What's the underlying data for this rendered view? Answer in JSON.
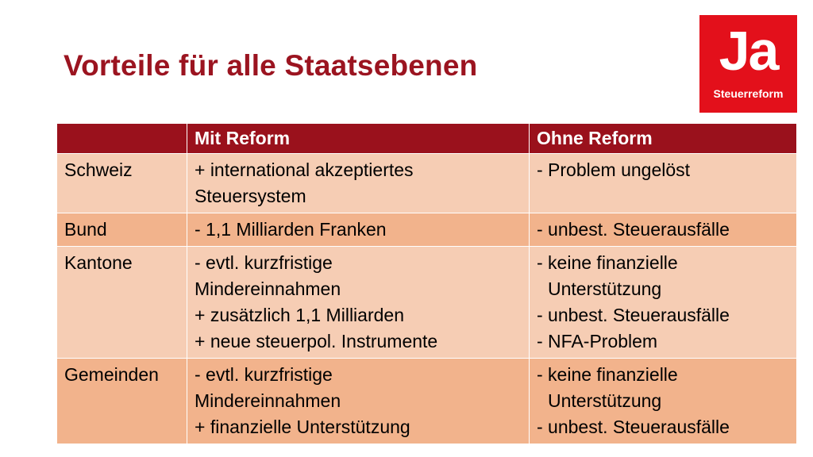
{
  "slide": {
    "title": "Vorteile für alle Staatsebenen"
  },
  "logo": {
    "big_text": "Ja",
    "sub_text": "Steuerreform",
    "color": "#e3101b"
  },
  "table": {
    "headers": [
      "",
      "Mit Reform",
      "Ohne Reform"
    ],
    "rows": [
      {
        "label": "Schweiz",
        "mit": [
          "+ international akzeptiertes",
          "Steuersystem"
        ],
        "ohne": [
          "- Problem ungelöst"
        ]
      },
      {
        "label": "Bund",
        "mit": [
          "- 1,1 Milliarden Franken"
        ],
        "ohne": [
          "- unbest. Steuerausfälle"
        ]
      },
      {
        "label": "Kantone",
        "mit": [
          "- evtl. kurzfristige",
          "Mindereinnahmen",
          "+ zusätzlich 1,1 Milliarden",
          "+ neue steuerpol. Instrumente"
        ],
        "ohne": [
          "- keine finanzielle",
          "Unterstützung",
          "- unbest. Steuerausfälle",
          "- NFA-Problem"
        ]
      },
      {
        "label": "Gemeinden",
        "mit": [
          "- evtl. kurzfristige",
          "Mindereinnahmen",
          "+ finanzielle Unterstützung"
        ],
        "ohne": [
          "- keine finanzielle",
          "Unterstützung",
          "- unbest. Steuerausfälle"
        ]
      }
    ],
    "colors": {
      "header": "#9a111c",
      "row_light": "#f6cdb4",
      "row_dark": "#f2b38c"
    }
  }
}
